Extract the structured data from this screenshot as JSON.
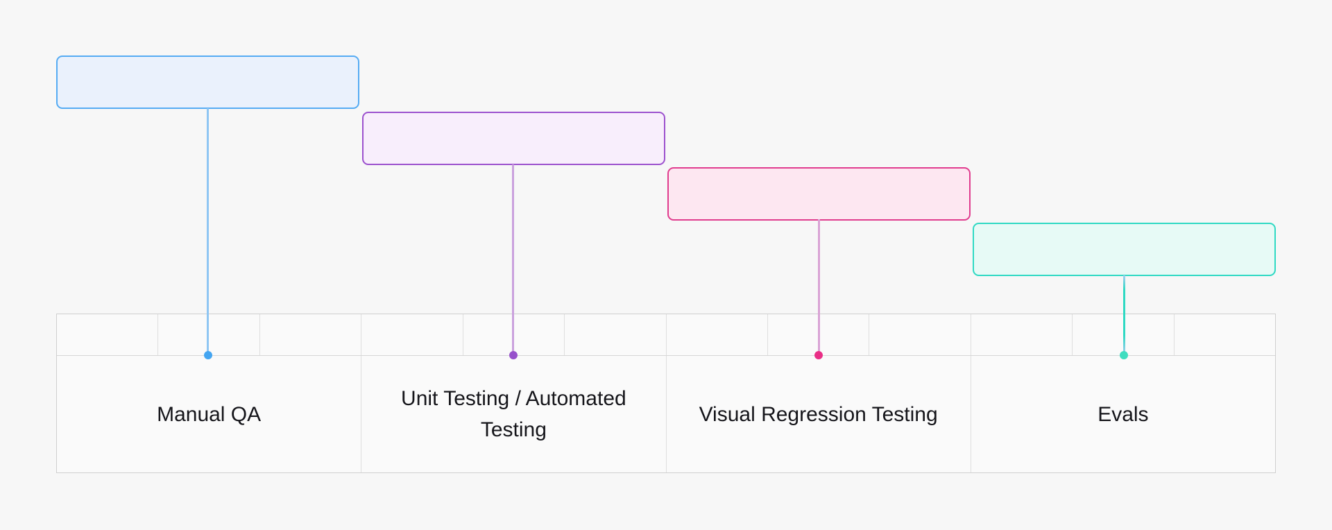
{
  "page": {
    "background_color": "#f7f7f7",
    "text_color": "#15151a"
  },
  "items": [
    {
      "id": "manual-qa",
      "label": "Manual QA",
      "box_fill": "#eaf1fc",
      "box_border": "#55abf3",
      "dot_color": "#44a5f1",
      "line_color": "#8fc6f3"
    },
    {
      "id": "unit-automated-testing",
      "label": "Unit Testing / Automated Testing",
      "box_fill": "#f8eefc",
      "box_border": "#9c51ce",
      "dot_color": "#9751cb",
      "line_color": "#caa1dd"
    },
    {
      "id": "visual-regression-testing",
      "label": "Visual Regression Testing",
      "box_fill": "#fde7f1",
      "box_border": "#e03c8e",
      "dot_color": "#e92e86",
      "line_color": "#d9a3d5"
    },
    {
      "id": "evals",
      "label": "Evals",
      "box_fill": "#e7faf6",
      "box_border": "#2ed9c3",
      "dot_color": "#3eddbf",
      "line_color": "#2ed9c3",
      "line_gradient": [
        "#a8cdf2 0%",
        "#2ed9c3 18%",
        "#2ed9c3 75%",
        "#a8cdf2 100%"
      ]
    }
  ],
  "table": {
    "tick_cells_per_category": 3,
    "border_color": "#d6d6d6",
    "cell_background": "#fafafa"
  }
}
